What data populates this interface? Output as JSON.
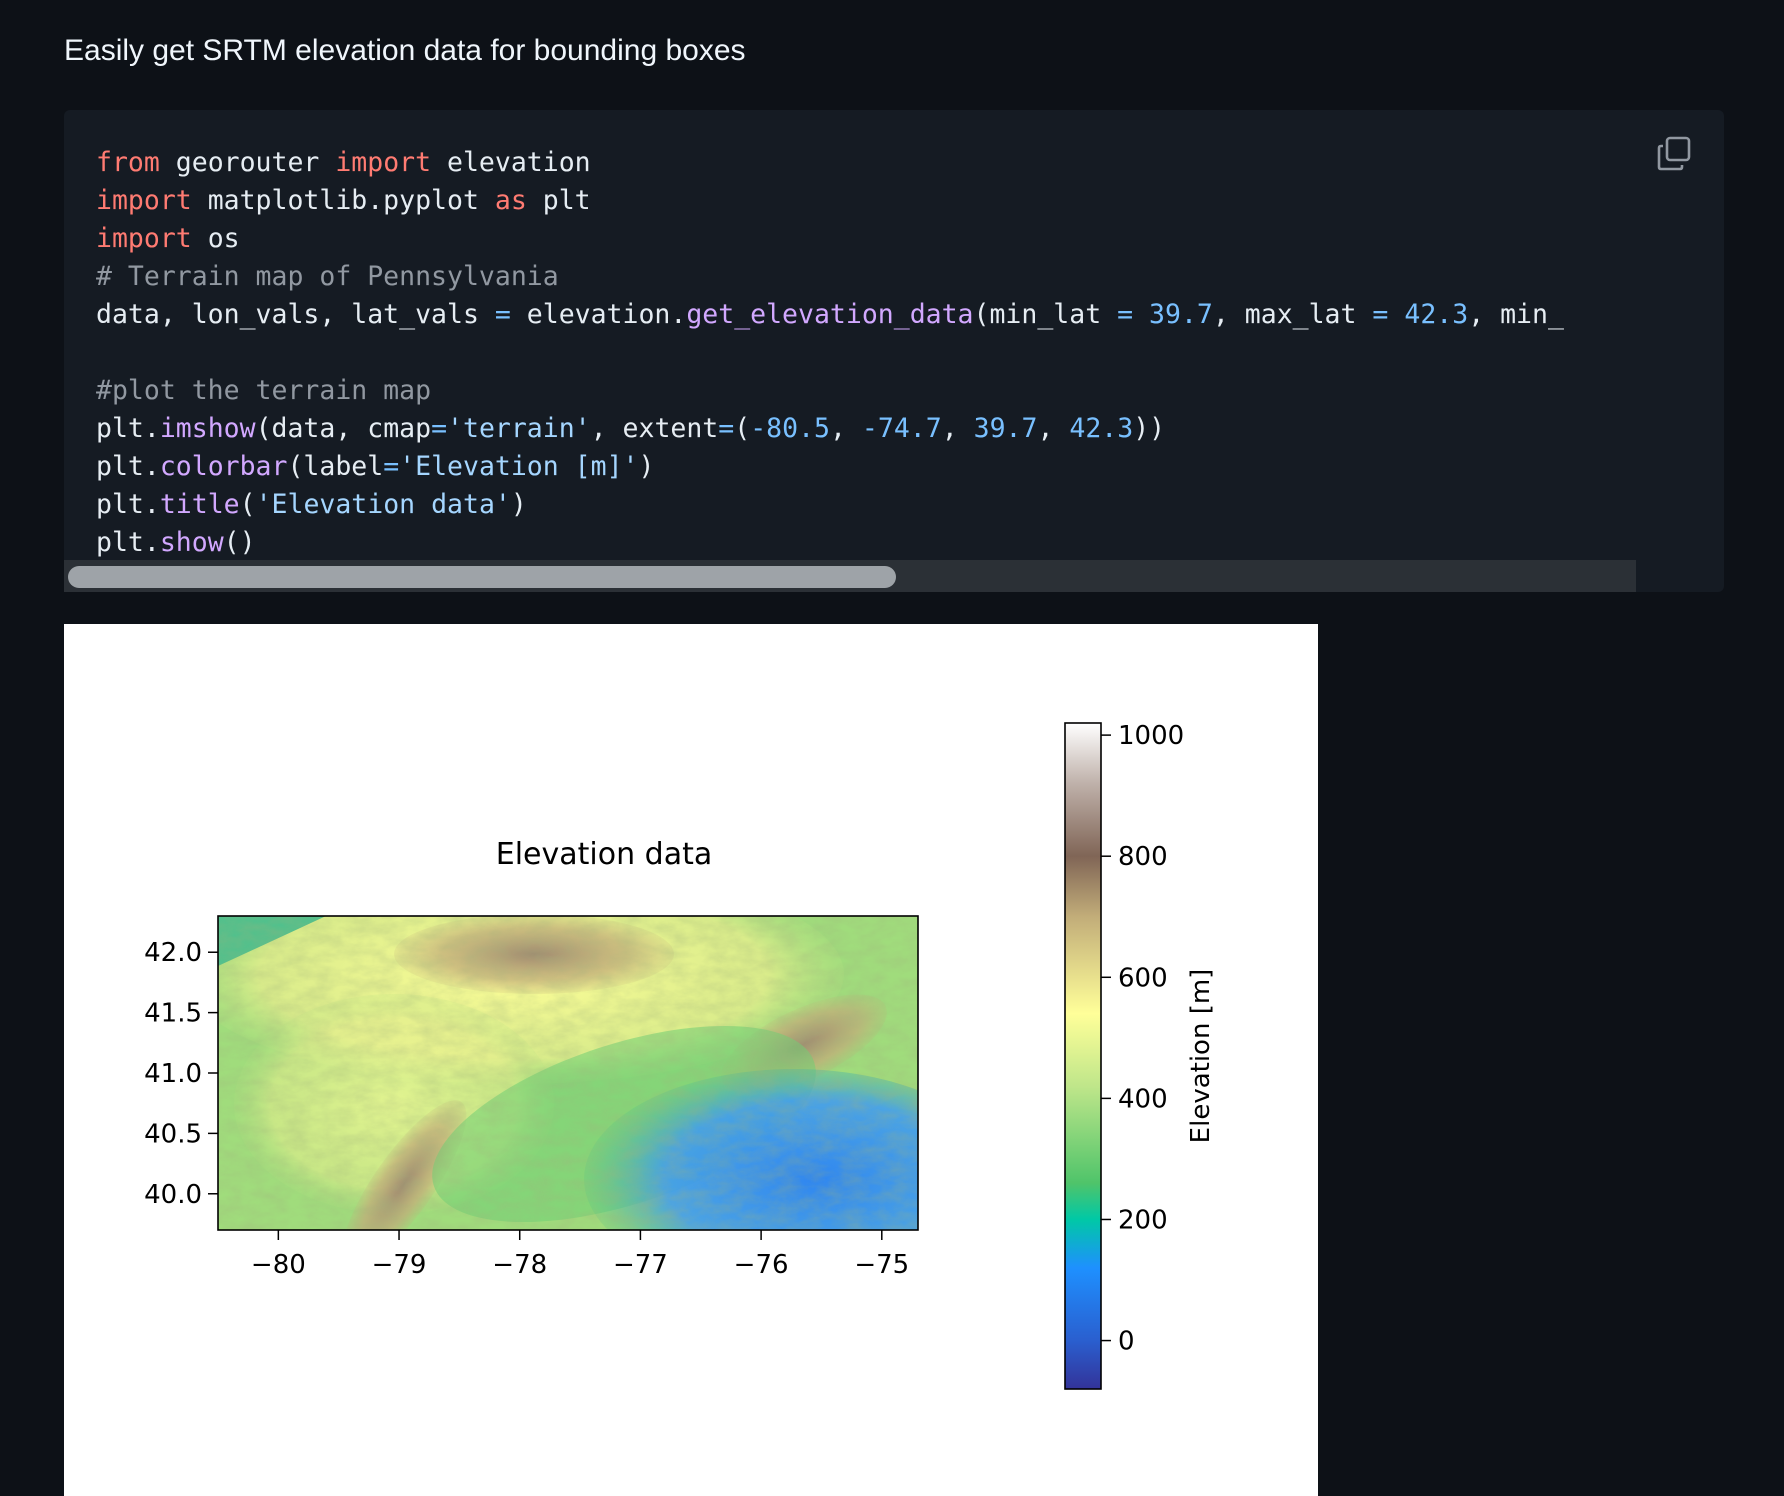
{
  "intro_text": "Easily get SRTM elevation data for bounding boxes",
  "code": {
    "language": "python",
    "lines": [
      "from georouter import elevation",
      "import matplotlib.pyplot as plt",
      "import os",
      "# Terrain map of Pennsylvania",
      "data, lon_vals, lat_vals = elevation.get_elevation_data(min_lat = 39.7, max_lat = 42.3, min_",
      "",
      "#plot the terrain map",
      "plt.imshow(data, cmap='terrain', extent=(-80.5, -74.7, 39.7, 42.3))",
      "plt.colorbar(label='Elevation [m]')",
      "plt.title('Elevation data')",
      "plt.show()"
    ],
    "copy_icon": "copy-icon"
  },
  "chart_data": {
    "type": "heatmap",
    "title": "Elevation data",
    "colormap": "terrain",
    "extent": [
      -80.5,
      -74.7,
      39.7,
      42.3
    ],
    "x_ticks": [
      -80,
      -79,
      -78,
      -77,
      -76,
      -75
    ],
    "x_tick_labels": [
      "−80",
      "−79",
      "−78",
      "−77",
      "−76",
      "−75"
    ],
    "y_ticks": [
      40.0,
      40.5,
      41.0,
      41.5,
      42.0
    ],
    "y_tick_labels": [
      "40.0",
      "40.5",
      "41.0",
      "41.5",
      "42.0"
    ],
    "xlim": [
      -80.5,
      -74.7
    ],
    "ylim": [
      39.7,
      42.3
    ],
    "colorbar": {
      "label": "Elevation [m]",
      "range": [
        -80,
        1020
      ],
      "ticks": [
        0,
        200,
        400,
        600,
        800,
        1000
      ],
      "tick_labels": [
        "0",
        "200",
        "400",
        "600",
        "800",
        "1000"
      ]
    },
    "grid": false,
    "colors": {
      "deep": "#333399",
      "water": "#1e90ff",
      "lowland": "#4fc46a",
      "plain": "#a0dc7c",
      "hill": "#ffff99",
      "upland": "#c2ad79",
      "ridge": "#806556",
      "peak": "#ffffff"
    }
  }
}
